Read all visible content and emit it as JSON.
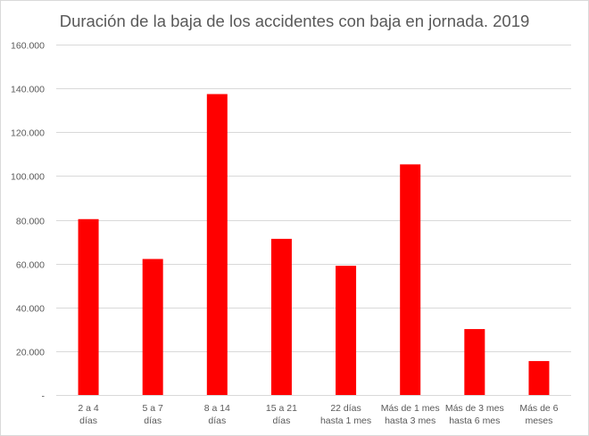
{
  "chart_data": {
    "type": "bar",
    "title": "Duración de la baja de los accidentes con baja en jornada. 2019",
    "xlabel": "",
    "ylabel": "",
    "categories": [
      [
        "2 a 4",
        "días"
      ],
      [
        "5 a 7",
        "días"
      ],
      [
        "8 a 14",
        "días"
      ],
      [
        "15 a 21",
        "días"
      ],
      [
        "22 días",
        "hasta 1 mes"
      ],
      [
        "Más de 1 mes",
        "hasta 3 mes"
      ],
      [
        "Más de 3 mes",
        "hasta 6 mes"
      ],
      [
        "Más de 6",
        "meses"
      ]
    ],
    "values": [
      80300,
      62100,
      137400,
      71300,
      59000,
      105300,
      30100,
      15500
    ],
    "ylim": [
      0,
      160000
    ],
    "yticks": [
      0,
      20000,
      40000,
      60000,
      80000,
      100000,
      120000,
      140000,
      160000
    ],
    "ytick_labels": [
      "-",
      "20.000",
      "40.000",
      "60.000",
      "80.000",
      "100.000",
      "120.000",
      "140.000",
      "160.000"
    ],
    "bar_color": "#ff0000",
    "grid": true,
    "legend": "none"
  }
}
